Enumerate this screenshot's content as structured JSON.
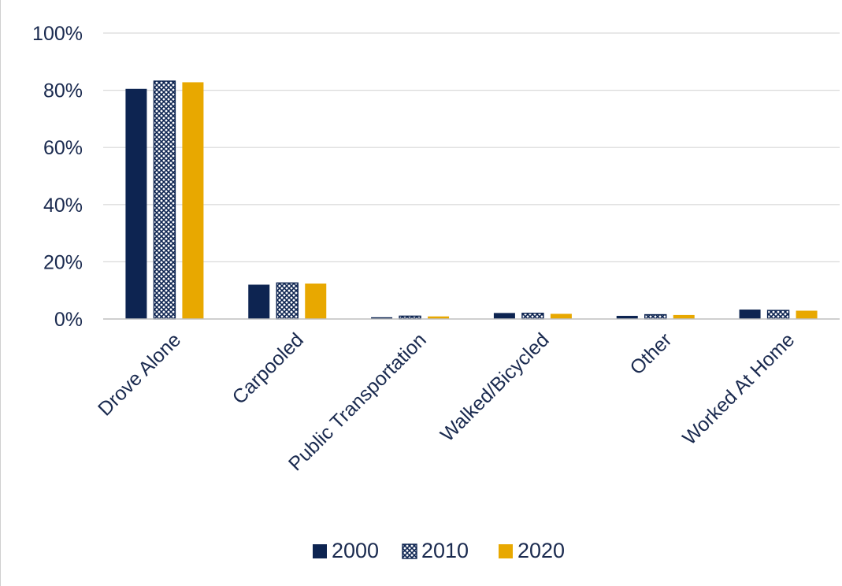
{
  "chart_data": {
    "type": "bar",
    "title": "",
    "xlabel": "",
    "ylabel": "",
    "ylim": [
      0,
      100
    ],
    "yticks": [
      0,
      20,
      40,
      60,
      80,
      100
    ],
    "ytick_labels": [
      "0%",
      "20%",
      "40%",
      "60%",
      "80%",
      "100%"
    ],
    "grid": true,
    "legend_position": "bottom",
    "categories": [
      "Drove Alone",
      "Carpooled",
      "Public Transportation",
      "Walked/Bicycled",
      "Other",
      "Worked At Home"
    ],
    "series": [
      {
        "name": "2000",
        "color": "#0d2451",
        "pattern": "solid",
        "values": [
          80.5,
          12.0,
          0.6,
          2.1,
          1.1,
          3.3
        ]
      },
      {
        "name": "2010",
        "color": "#0d2451",
        "pattern": "crosshatch",
        "values": [
          83.2,
          12.6,
          1.0,
          2.0,
          1.5,
          3.0
        ]
      },
      {
        "name": "2020",
        "color": "#e8a800",
        "pattern": "solid",
        "values": [
          82.8,
          12.4,
          0.9,
          1.8,
          1.4,
          2.9
        ]
      }
    ]
  }
}
